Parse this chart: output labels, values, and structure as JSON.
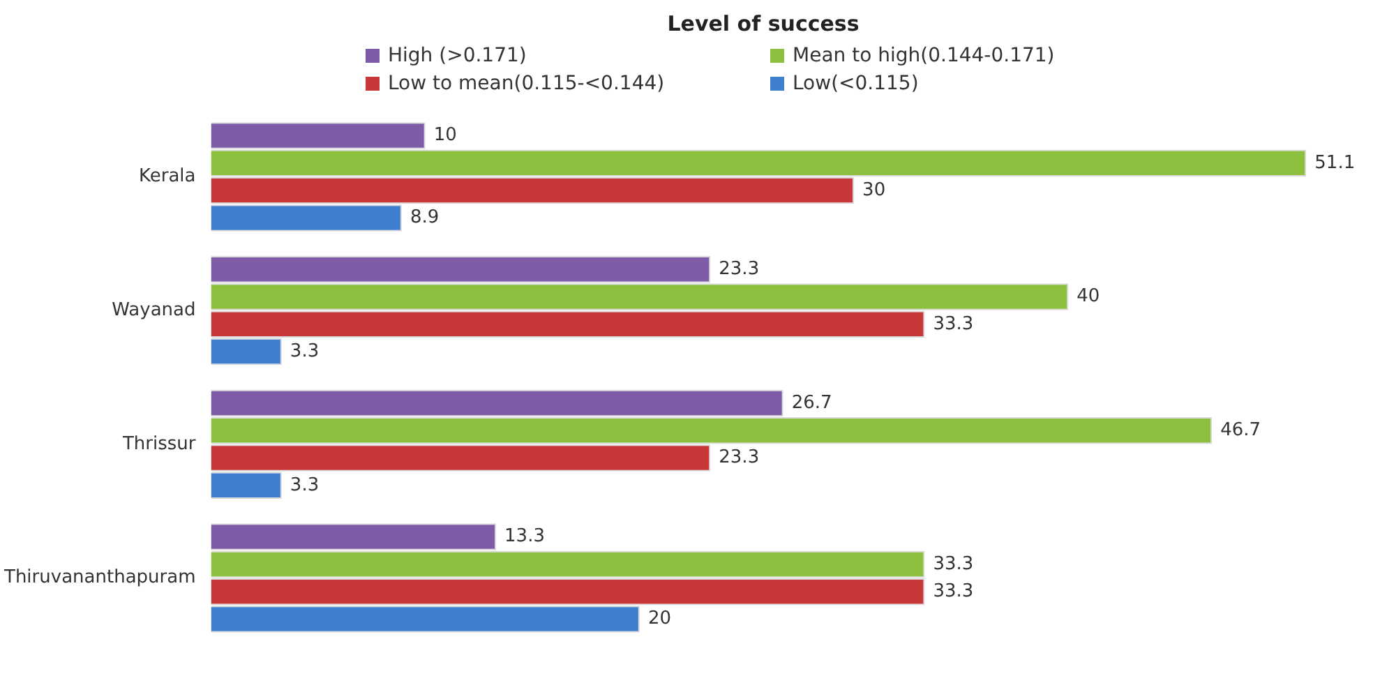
{
  "chart_data": {
    "type": "bar",
    "orientation": "horizontal",
    "title": "Level of success",
    "categories": [
      "Kerala",
      "Wayanad",
      "Thrissur",
      "Thiruvananthapuram"
    ],
    "series": [
      {
        "name": "High (>0.171)",
        "color": "#7e5ba6",
        "values": [
          10,
          23.3,
          26.7,
          13.3
        ]
      },
      {
        "name": "Mean to high(0.144-0.171)",
        "color": "#8dc03f",
        "values": [
          51.1,
          40,
          46.7,
          33.3
        ]
      },
      {
        "name": "Low to mean(0.115-<0.144)",
        "color": "#c8383a",
        "values": [
          30,
          33.3,
          23.3,
          33.3
        ]
      },
      {
        "name": "Low(<0.115)",
        "color": "#3f7fd0",
        "values": [
          8.9,
          3.3,
          3.3,
          20
        ]
      }
    ],
    "data_labels": true,
    "legend": "top",
    "grid": false
  }
}
